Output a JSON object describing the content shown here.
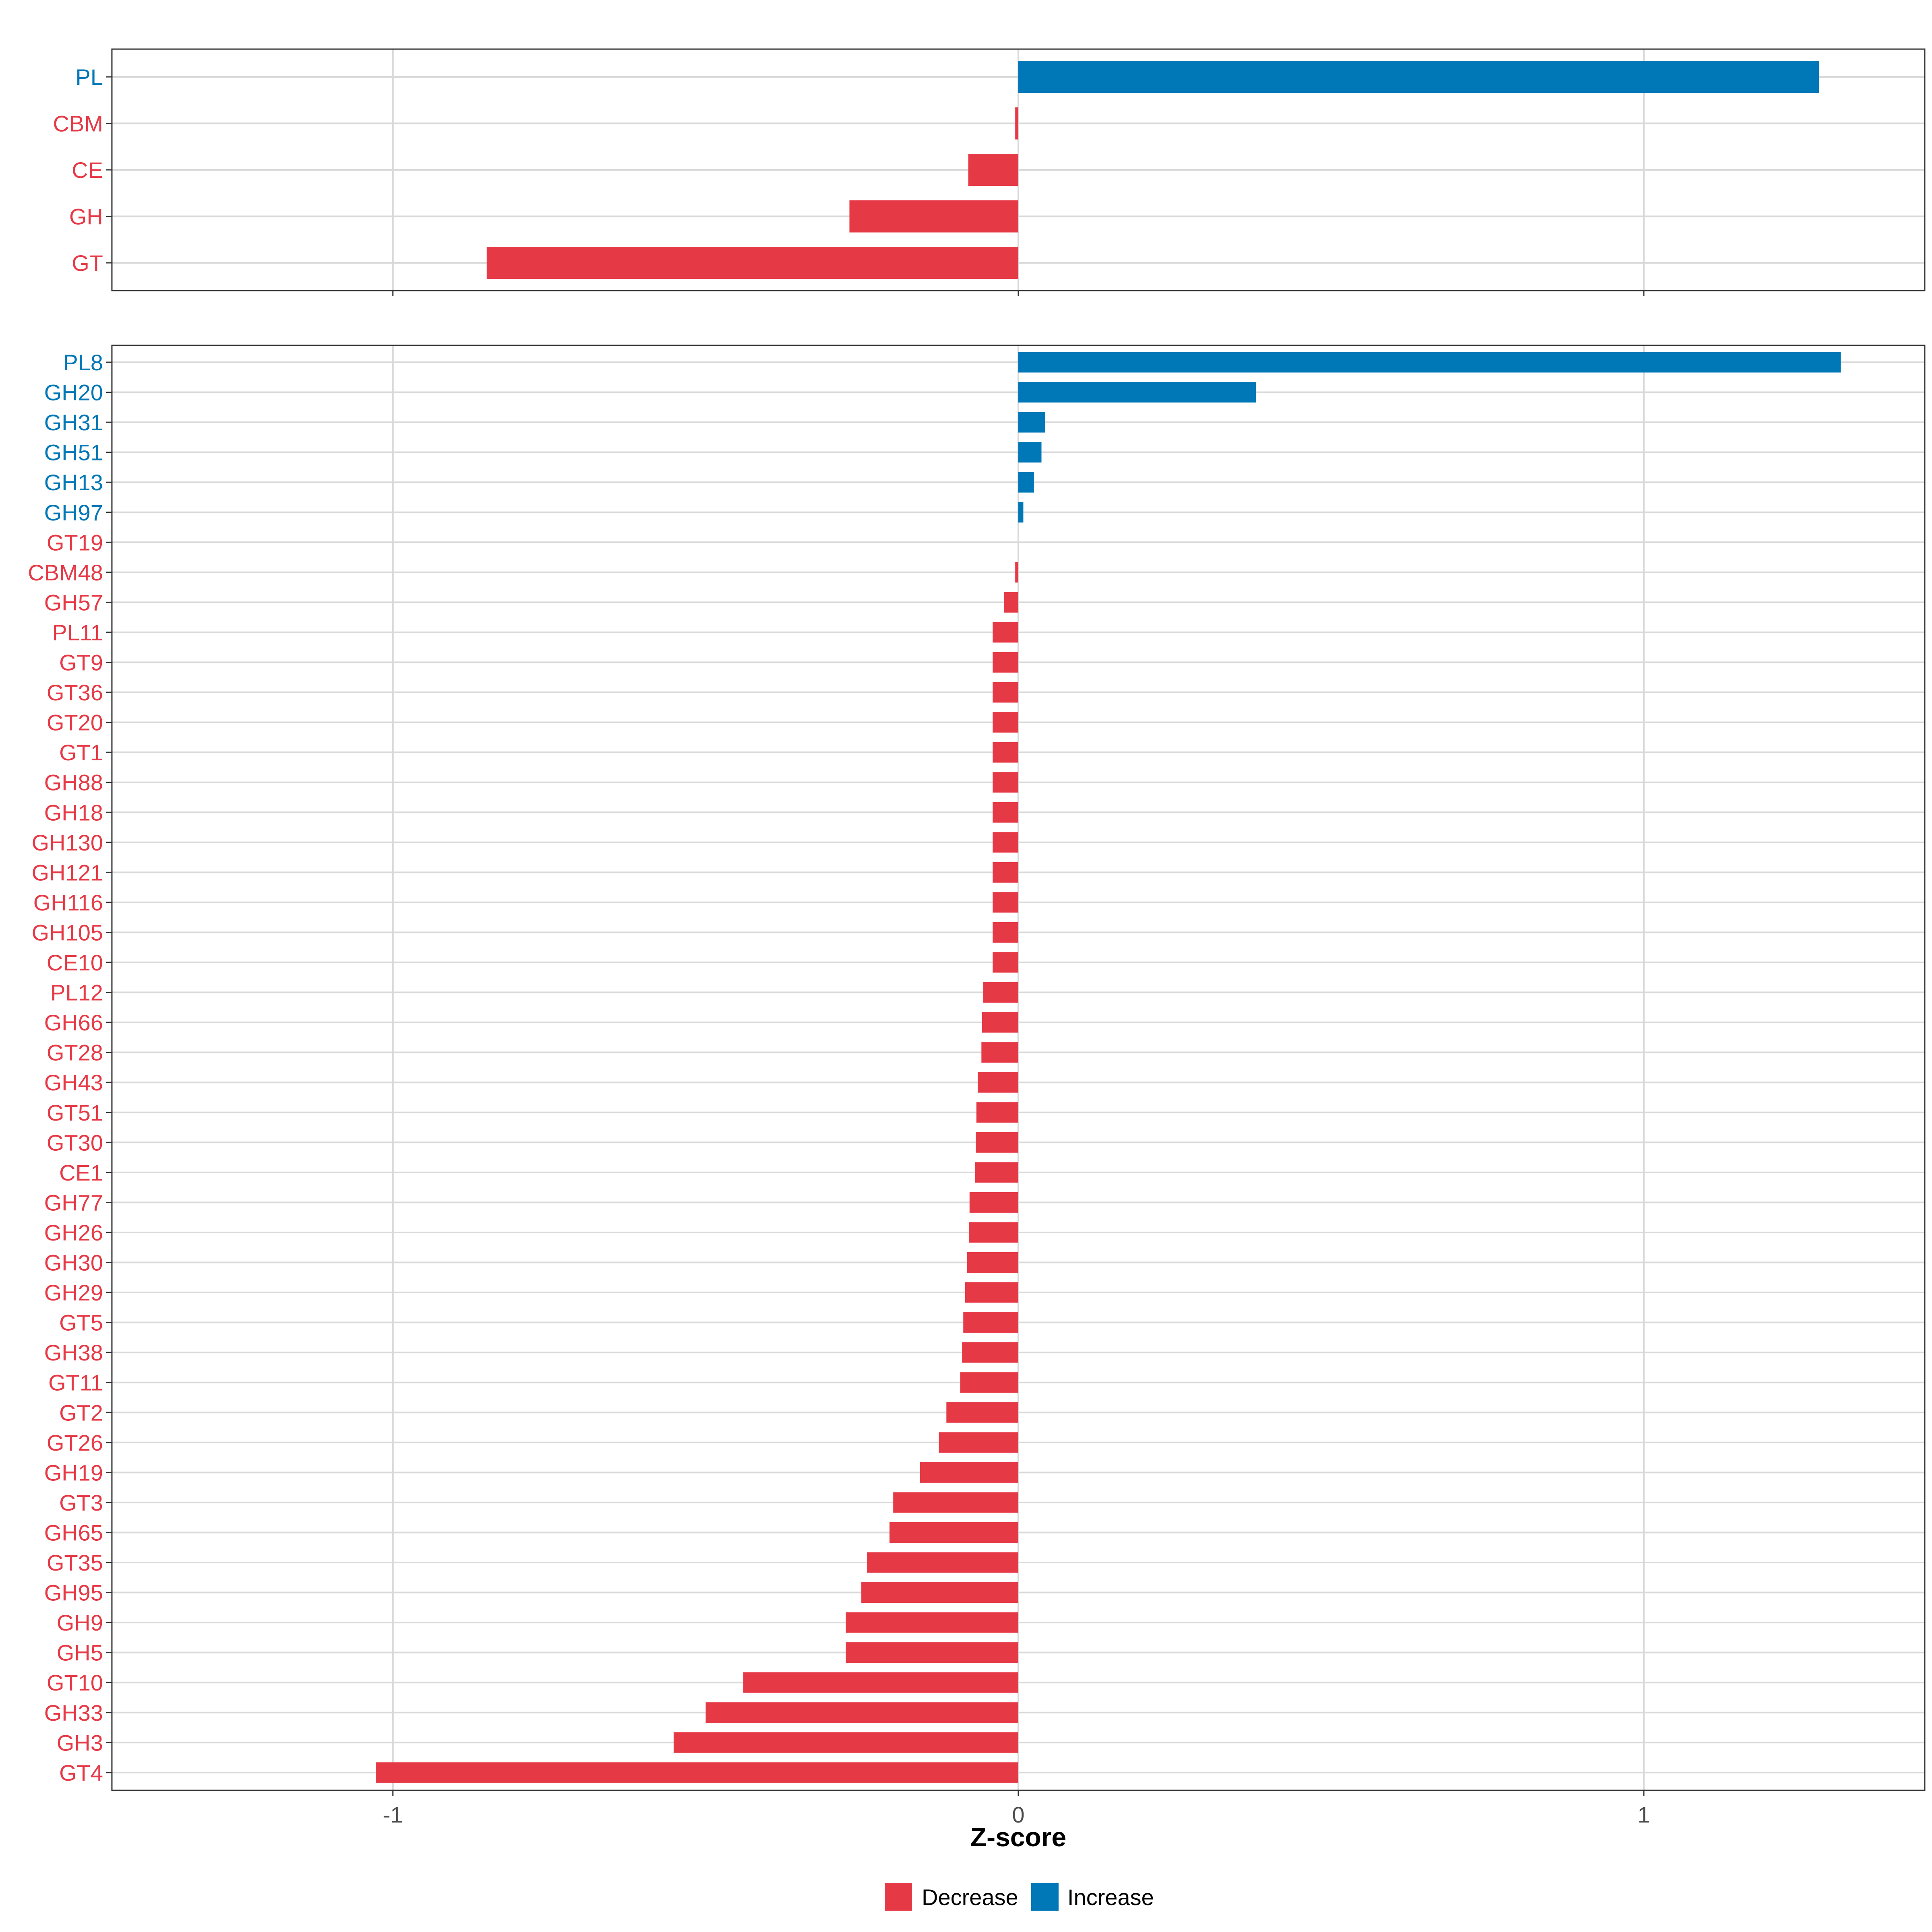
{
  "colors": {
    "decrease": "#E63946",
    "increase": "#0077B6",
    "grid": "#D9D9D9",
    "panel_border": "#333333",
    "tick_text": "#4d4d4d"
  },
  "chart_data": {
    "type": "bar",
    "orientation": "horizontal",
    "xlabel": "Z-score",
    "xlim": [
      -1.45,
      1.45
    ],
    "xticks": [
      -1,
      0,
      1
    ],
    "xtick_labels": [
      "-1",
      "0",
      "1"
    ],
    "legend": {
      "position": "bottom",
      "entries": [
        {
          "key": "decrease",
          "label": "Decrease"
        },
        {
          "key": "increase",
          "label": "Increase"
        }
      ]
    },
    "panels": [
      {
        "name": "class",
        "categories": [
          "PL",
          "CBM",
          "CE",
          "GH",
          "GT"
        ],
        "values": [
          1.28,
          -0.005,
          -0.08,
          -0.27,
          -0.85
        ],
        "direction": [
          "increase",
          "decrease",
          "decrease",
          "decrease",
          "decrease"
        ]
      },
      {
        "name": "family",
        "categories": [
          "PL8",
          "GH20",
          "GH31",
          "GH51",
          "GH13",
          "GH97",
          "GT19",
          "CBM48",
          "GH57",
          "PL11",
          "GT9",
          "GT36",
          "GT20",
          "GT1",
          "GH88",
          "GH18",
          "GH130",
          "GH121",
          "GH116",
          "GH105",
          "CE10",
          "PL12",
          "GH66",
          "GT28",
          "GH43",
          "GT51",
          "GT30",
          "CE1",
          "GH77",
          "GH26",
          "GH30",
          "GH29",
          "GT5",
          "GH38",
          "GT11",
          "GT2",
          "GT26",
          "GH19",
          "GT3",
          "GH65",
          "GT35",
          "GH95",
          "GH9",
          "GH5",
          "GT10",
          "GH33",
          "GH3",
          "GT4"
        ],
        "values": [
          1.315,
          0.38,
          0.043,
          0.037,
          0.025,
          0.008,
          0.0,
          -0.005,
          -0.023,
          -0.041,
          -0.041,
          -0.041,
          -0.041,
          -0.041,
          -0.041,
          -0.041,
          -0.041,
          -0.041,
          -0.041,
          -0.041,
          -0.041,
          -0.056,
          -0.058,
          -0.059,
          -0.065,
          -0.067,
          -0.068,
          -0.069,
          -0.078,
          -0.079,
          -0.082,
          -0.085,
          -0.088,
          -0.09,
          -0.093,
          -0.115,
          -0.127,
          -0.157,
          -0.2,
          -0.206,
          -0.242,
          -0.251,
          -0.276,
          -0.276,
          -0.44,
          -0.5,
          -0.551,
          -1.027
        ],
        "direction": [
          "increase",
          "increase",
          "increase",
          "increase",
          "increase",
          "increase",
          "decrease",
          "decrease",
          "decrease",
          "decrease",
          "decrease",
          "decrease",
          "decrease",
          "decrease",
          "decrease",
          "decrease",
          "decrease",
          "decrease",
          "decrease",
          "decrease",
          "decrease",
          "decrease",
          "decrease",
          "decrease",
          "decrease",
          "decrease",
          "decrease",
          "decrease",
          "decrease",
          "decrease",
          "decrease",
          "decrease",
          "decrease",
          "decrease",
          "decrease",
          "decrease",
          "decrease",
          "decrease",
          "decrease",
          "decrease",
          "decrease",
          "decrease",
          "decrease",
          "decrease",
          "decrease",
          "decrease",
          "decrease",
          "decrease"
        ]
      }
    ]
  }
}
